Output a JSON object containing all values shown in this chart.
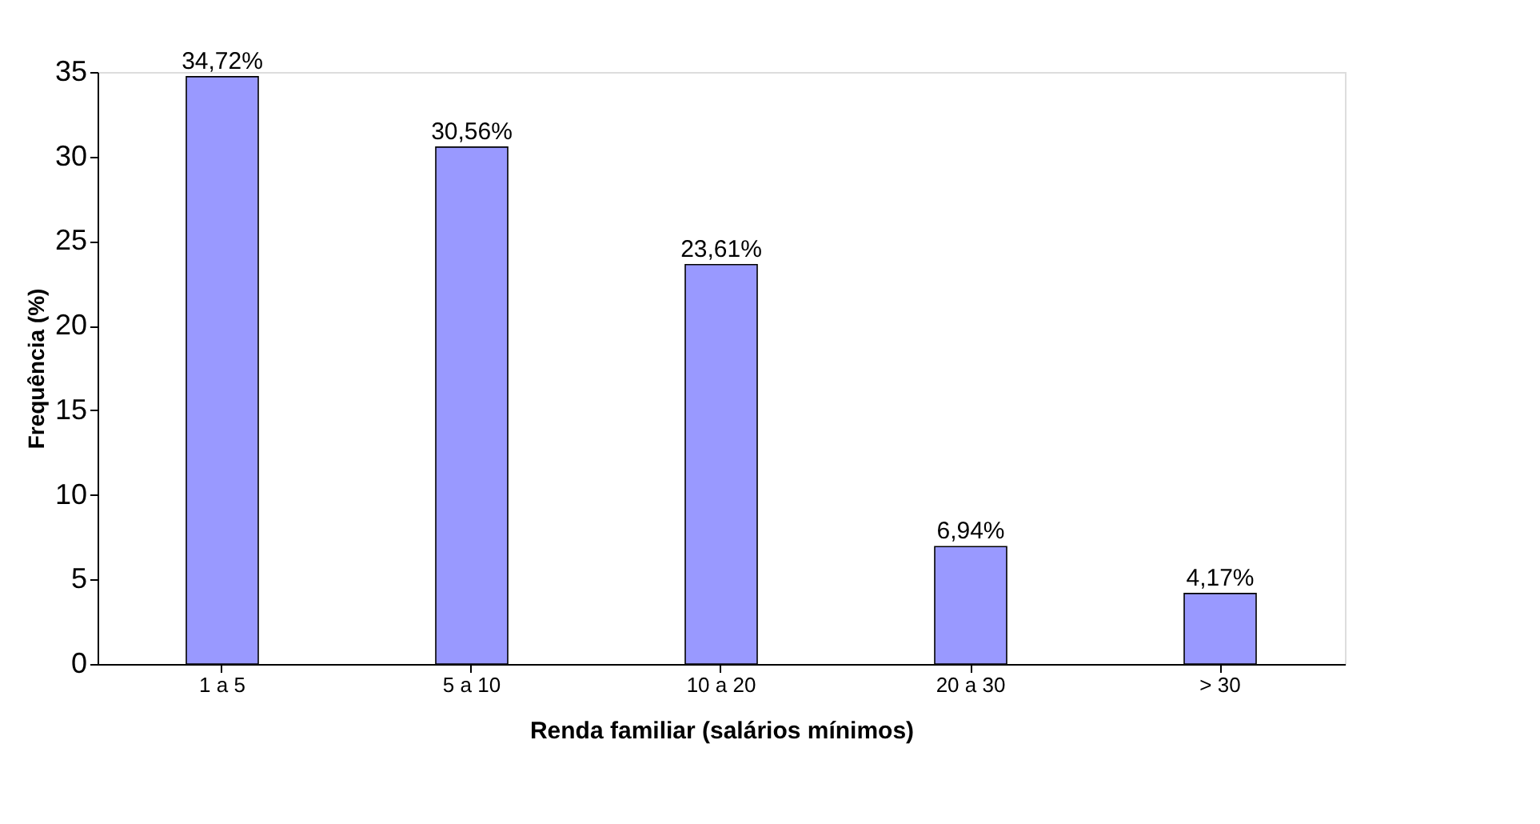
{
  "chart_data": {
    "type": "bar",
    "xlabel": "Renda familiar (salários mínimos)",
    "ylabel": "Frequência (%)",
    "categories": [
      "1 a 5",
      "5 a 10",
      "10 a 20",
      "20 a 30",
      "> 30"
    ],
    "values": [
      34.72,
      30.56,
      23.61,
      6.94,
      4.17
    ],
    "value_labels": [
      "34,72%",
      "30,56%",
      "23,61%",
      "6,94%",
      "4,17%"
    ],
    "color": "#9999ff",
    "ylim": [
      0,
      35
    ],
    "yticks": [
      0,
      5,
      10,
      15,
      20,
      25,
      30,
      35
    ],
    "grid": false
  }
}
